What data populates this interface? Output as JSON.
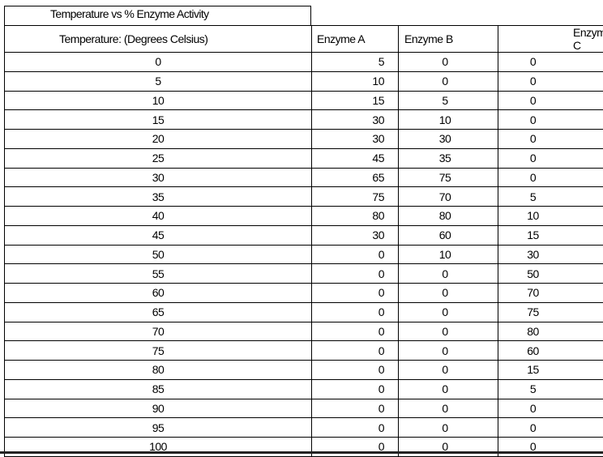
{
  "title": "Temperature vs % Enzyme Activity",
  "columns": [
    "Temperature: (Degrees Celsius)",
    "Enzyme A",
    "Enzyme B",
    "Enzyme C"
  ],
  "rows": [
    [
      "0",
      "5",
      "0",
      "0"
    ],
    [
      "5",
      "10",
      "0",
      "0"
    ],
    [
      "10",
      "15",
      "5",
      "0"
    ],
    [
      "15",
      "30",
      "10",
      "0"
    ],
    [
      "20",
      "30",
      "30",
      "0"
    ],
    [
      "25",
      "45",
      "35",
      "0"
    ],
    [
      "30",
      "65",
      "75",
      "0"
    ],
    [
      "35",
      "75",
      "70",
      "5"
    ],
    [
      "40",
      "80",
      "80",
      "10"
    ],
    [
      "45",
      "30",
      "60",
      "15"
    ],
    [
      "50",
      "0",
      "10",
      "30"
    ],
    [
      "55",
      "0",
      "0",
      "50"
    ],
    [
      "60",
      "0",
      "0",
      "70"
    ],
    [
      "65",
      "0",
      "0",
      "75"
    ],
    [
      "70",
      "0",
      "0",
      "80"
    ],
    [
      "75",
      "0",
      "0",
      "60"
    ],
    [
      "80",
      "0",
      "0",
      "15"
    ],
    [
      "85",
      "0",
      "0",
      "5"
    ],
    [
      "90",
      "0",
      "0",
      "0"
    ],
    [
      "95",
      "0",
      "0",
      "0"
    ],
    [
      "100",
      "0",
      "0",
      "0"
    ]
  ]
}
